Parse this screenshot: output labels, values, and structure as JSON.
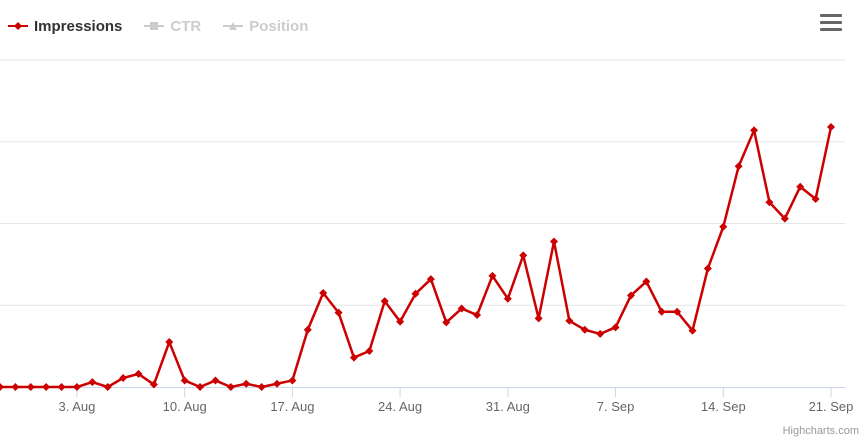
{
  "legend": [
    {
      "label": "Impressions",
      "active": true,
      "symbol": "diamond"
    },
    {
      "label": "CTR",
      "active": false,
      "symbol": "square"
    },
    {
      "label": "Position",
      "active": false,
      "symbol": "triangle"
    }
  ],
  "menu_icon": "hamburger-menu-icon",
  "credits": "Highcharts.com",
  "colors": {
    "series": "#cc0000",
    "grid": "#e6e6e6",
    "axis": "#ccd6eb",
    "inactive": "#cccccc",
    "text": "#333333"
  },
  "chart_data": {
    "type": "line",
    "title": "",
    "xlabel": "",
    "ylabel": "",
    "grid": true,
    "legend_position": "top-left",
    "x_ticks": [
      "3. Aug",
      "10. Aug",
      "17. Aug",
      "24. Aug",
      "31. Aug",
      "7. Sep",
      "14. Sep",
      "21. Sep"
    ],
    "x_start": "2020-07-29",
    "ylim": [
      0,
      400
    ],
    "series": [
      {
        "name": "Impressions",
        "color": "#cc0000",
        "values": [
          0,
          0,
          0,
          0,
          0,
          0,
          6,
          0,
          11,
          16,
          3,
          55,
          8,
          0,
          8,
          0,
          4,
          0,
          4,
          8,
          70,
          115,
          91,
          36,
          44,
          105,
          80,
          114,
          132,
          79,
          96,
          88,
          136,
          108,
          161,
          84,
          178,
          81,
          70,
          65,
          73,
          112,
          129,
          92,
          92,
          69,
          145,
          196,
          270,
          314,
          226,
          206,
          245,
          230,
          318
        ]
      }
    ]
  }
}
